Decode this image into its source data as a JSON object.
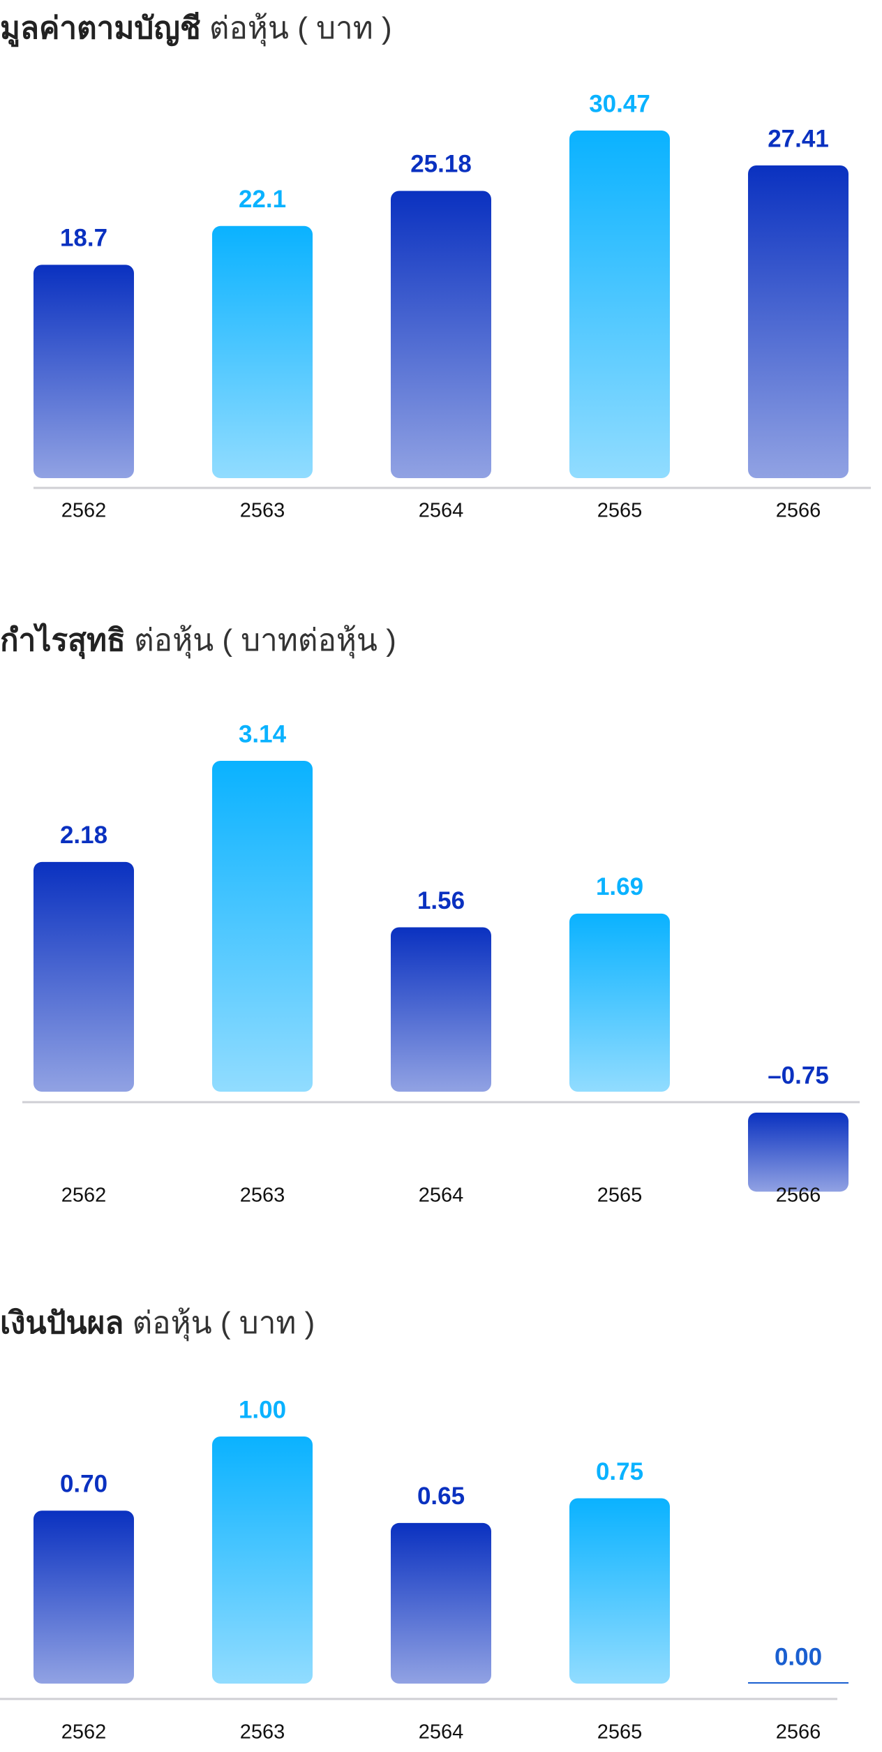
{
  "chart_data": [
    {
      "type": "bar",
      "title": "มูลค่าตามบัญชี",
      "subtitle": "ต่อหุ้น ( บาท )",
      "categories": [
        "2562",
        "2563",
        "2564",
        "2565",
        "2566"
      ],
      "values": [
        18.7,
        22.1,
        25.18,
        30.47,
        27.41
      ],
      "colors": [
        "#0a31c0",
        "#0ab2ff",
        "#0a31c0",
        "#0ab2ff",
        "#0a31c0"
      ]
    },
    {
      "type": "bar",
      "title": "กำไรสุทธิ",
      "subtitle": "ต่อหุ้น ( บาทต่อหุ้น )",
      "categories": [
        "2562",
        "2563",
        "2564",
        "2565",
        "2566"
      ],
      "values": [
        2.18,
        3.14,
        1.56,
        1.69,
        -0.75
      ],
      "value_labels": [
        "2.18",
        "3.14",
        "1.56",
        "1.69",
        "–0.75"
      ],
      "colors": [
        "#0a31c0",
        "#0ab2ff",
        "#0a31c0",
        "#0ab2ff",
        "#0a31c0"
      ]
    },
    {
      "type": "bar",
      "title": "เงินปันผล",
      "subtitle": "ต่อหุ้น ( บาท )",
      "categories": [
        "2562",
        "2563",
        "2564",
        "2565",
        "2566"
      ],
      "values": [
        0.7,
        1,
        0.65,
        0.75,
        0
      ],
      "value_labels": [
        "0.70",
        "1.00",
        "0.65",
        "0.75",
        "0.00"
      ],
      "colors": [
        "#0a31c0",
        "#0ab2ff",
        "#0a31c0",
        "#0ab2ff",
        "#1a5fd0"
      ]
    }
  ]
}
